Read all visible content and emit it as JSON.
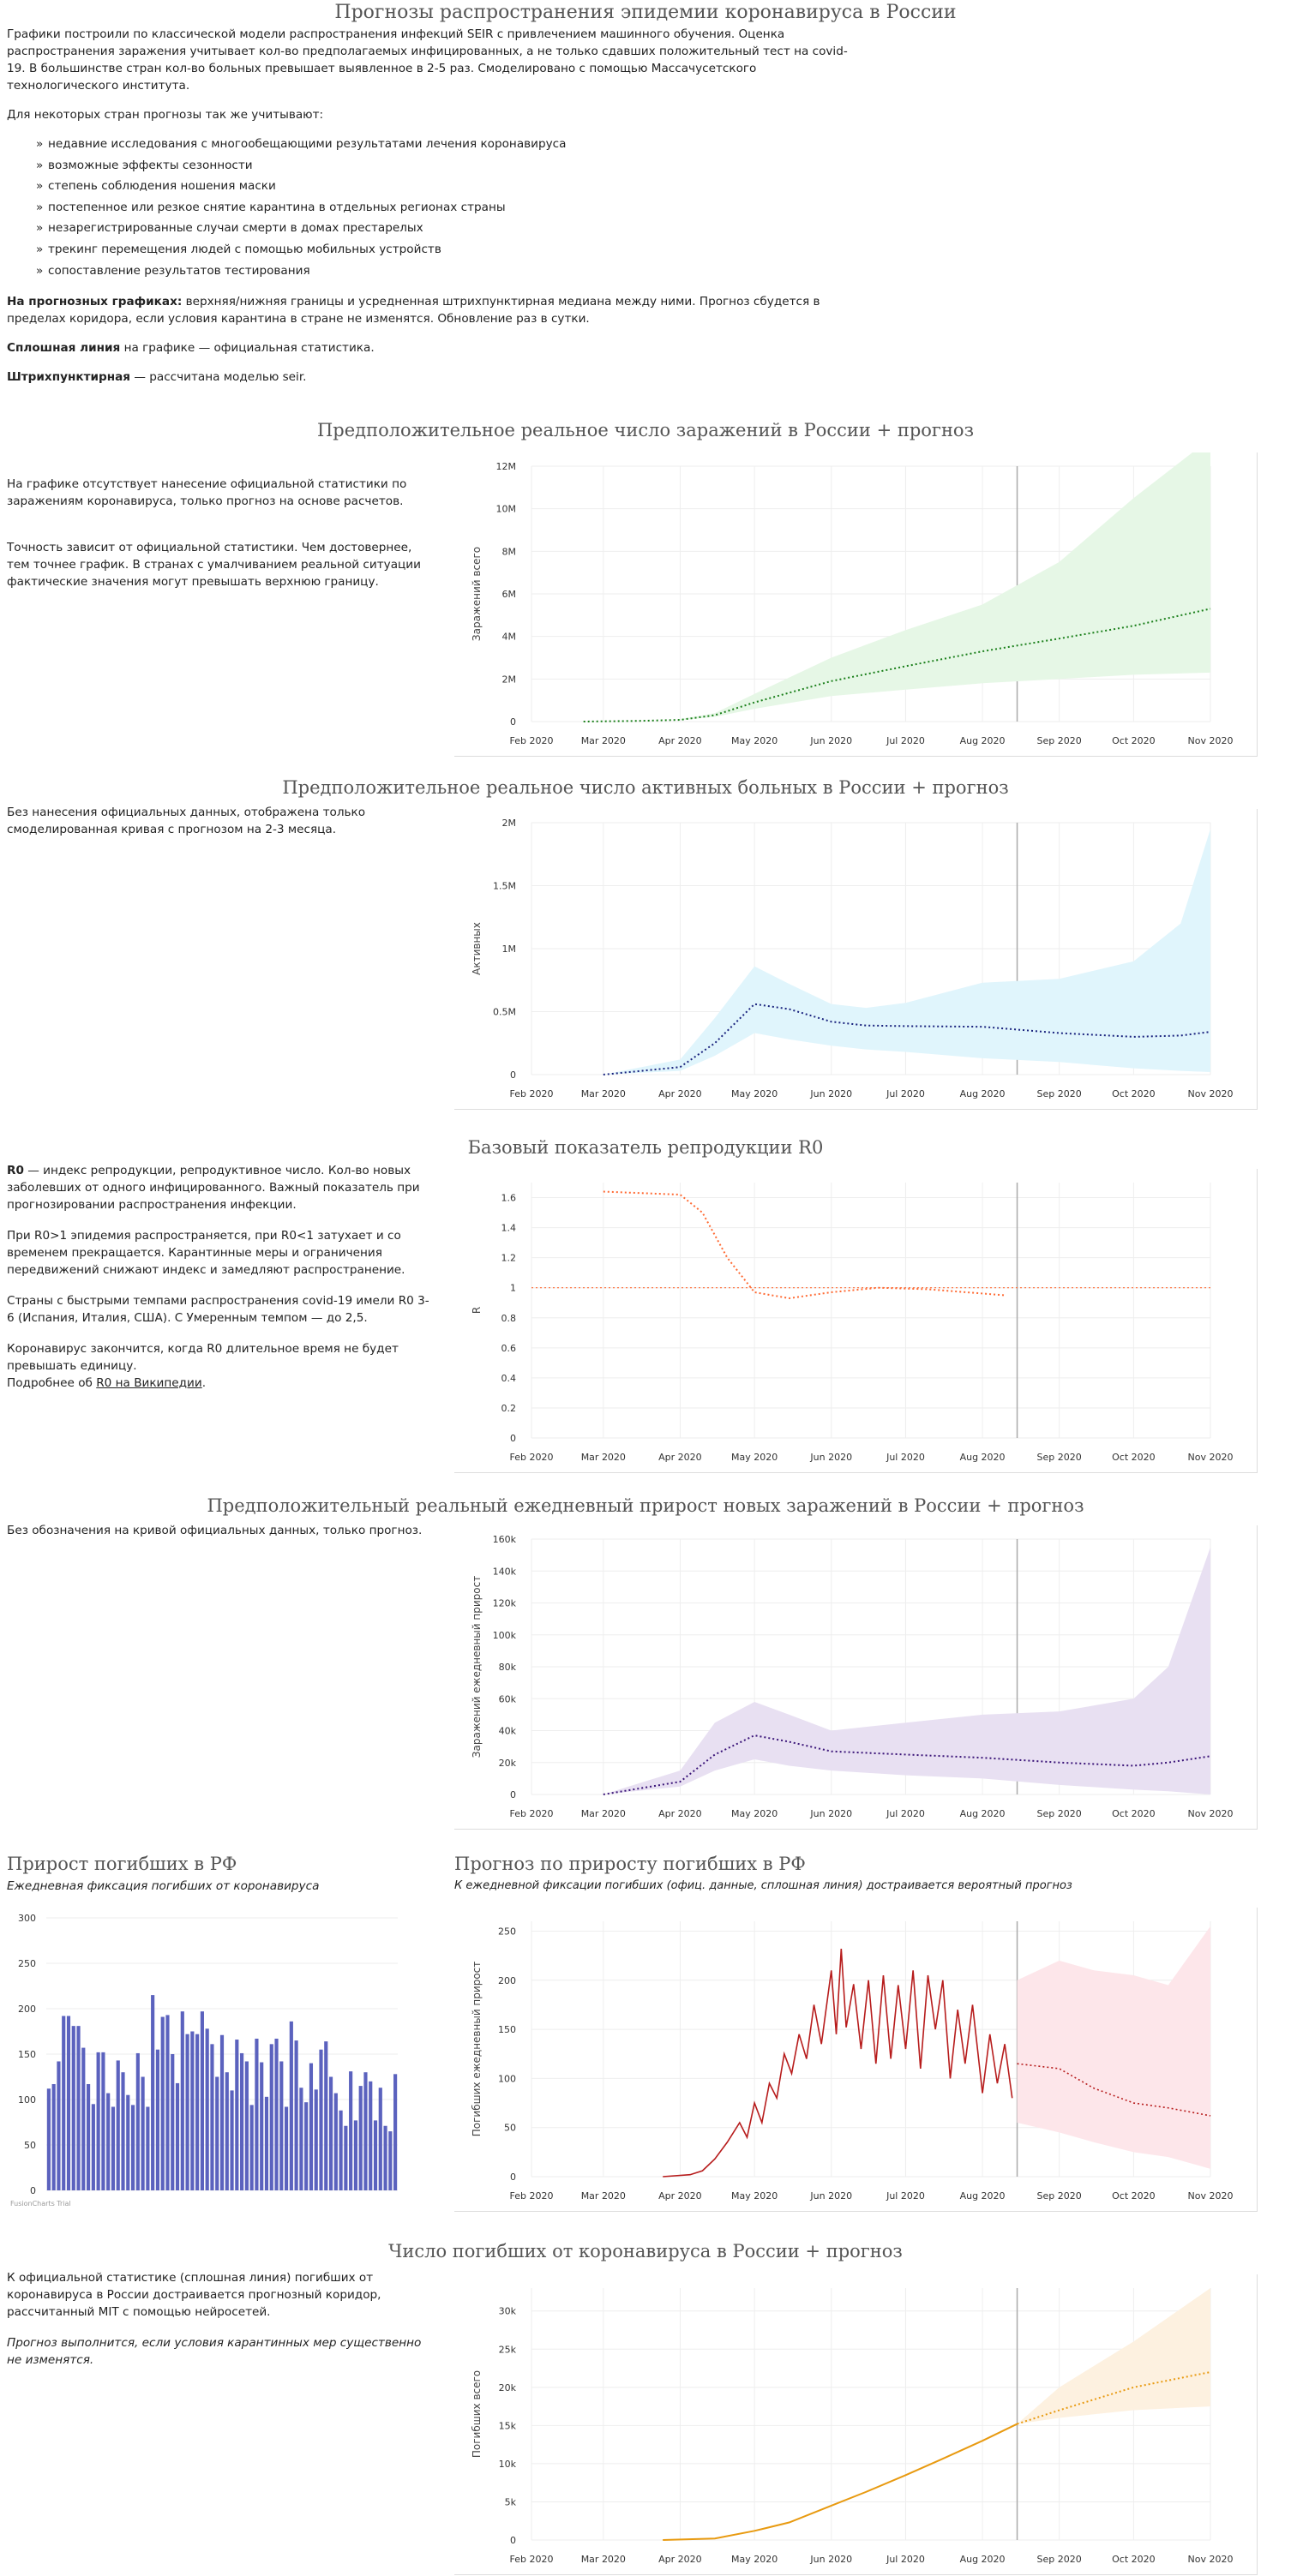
{
  "page": {
    "title": "Прогнозы распространения эпидемии коронавируса в России",
    "intro_p1": "Графики построили по классической модели распространения инфекций SEIR с привлечением машинного обучения. Оценка распространения заражения учитывает кол-во предполагаемых инфицированных, а не только сдавших положительный тест на covid-19. В большинстве стран кол-во больных превышает выявленное в 2-5 раз. Смоделировано с помощью Массачусетского технологического института.",
    "intro_p2": "Для некоторых стран прогнозы так же учитывают:",
    "bullets": [
      "недавние исследования с многообещающими результатами лечения коронавируса",
      "возможные эффекты сезонности",
      "степень соблюдения ношения маски",
      "постепенное или резкое снятие карантина в отдельных регионах страны",
      "незарегистрированные случаи смерти в домах престарелых",
      "трекинг перемещения людей с помощью мобильных устройств",
      "сопоставление результатов тестирования"
    ],
    "note1_bold": "На прогнозных графиках:",
    "note1_text": " верхняя/нижняя границы и усредненная штрихпунктирная медиана между ними. Прогноз сбудется в пределах коридора, если условия карантина в стране не изменятся. Обновление раз в сутки.",
    "note2_bold": "Сплошная линия",
    "note2_text": " на графике — официальная статистика.",
    "note3_bold": "Штрихпунктирная",
    "note3_text": " — рассчитана моделью seir."
  },
  "sections": {
    "s1": {
      "title": "Предположительное реальное число заражений в России + прогноз",
      "text1": "На графике отсутствует нанесение официальной статистики по заражениям коронавируса, только прогноз на основе расчетов.",
      "text2": "Точность зависит от официальной статистики. Чем достовернее, тем точнее график. В странах с умалчиванием реальной ситуации фактические значения могут превышать верхнюю границу."
    },
    "s2": {
      "title": "Предположительное реальное число активных больных в России + прогноз",
      "text1": "Без нанесения официальных данных, отображена только смоделированная кривая с прогнозом на 2-3 месяца."
    },
    "s3": {
      "title": "Базовый показатель репродукции R0",
      "p1_bold": "R0",
      "p1_text": " — индекс репродукции, репродуктивное число. Кол-во новых заболевших от одного инфицированного. Важный показатель при прогнозировании распространения инфекции.",
      "p2": "При R0>1 эпидемия распространяется, при R0<1 затухает и со временем прекращается. Карантинные меры и ограничения передвижений снижают индекс и замедляют распространение.",
      "p3": "Страны с быстрыми темпами распространения covid-19 имели R0 3-6 (Испания, Италия, США). С Умеренным темпом — до 2,5.",
      "p4": "Коронавирус закончится, когда R0 длительное время не будет превышать единицу.",
      "p5_prefix": "Подробнее об ",
      "p5_link": "R0 на Википедии",
      "p5_suffix": "."
    },
    "s4": {
      "title": "Предположительный реальный ежедневный прирост новых заражений в России + прогноз",
      "text1": "Без обозначения на кривой официальных данных, только прогноз."
    },
    "s5": {
      "title": "Прирост погибших в РФ",
      "subtitle": "Ежедневная фиксация погибших от коронавируса",
      "credit": "FusionCharts Trial"
    },
    "s6": {
      "title": "Прогноз по приросту погибших в РФ",
      "subtitle": "К ежедневной фиксации погибших (офиц. данные, сплошная линия) достраивается вероятный прогноз"
    },
    "s7": {
      "title": "Число погибших от коронавируса в России + прогноз",
      "text1": "К официальной статистике (сплошная линия) погибших от коронавируса в России достраивается прогнозный коридор, рассчитанный MIT с помощью нейросетей.",
      "text2": "Прогноз выполнится, если условия карантинных мер существенно не изменятся."
    }
  },
  "colors": {
    "infections": "#1a7f1a",
    "infections_band": "#e6f7e6",
    "active": "#1a237e",
    "active_band": "#e0f5fc",
    "r0": "#ff6a33",
    "daily": "#3a1478",
    "daily_band": "#e8e0f2",
    "bars": "#5b62be",
    "deaths_daily": "#b71c1c",
    "deaths_daily_band": "#fde6ea",
    "deaths_total": "#e89a10",
    "deaths_total_band": "#fdf1e0"
  },
  "chart_data": [
    {
      "id": "infections",
      "type": "area",
      "x_ticks": [
        "Feb 2020",
        "Mar 2020",
        "Apr 2020",
        "May 2020",
        "Jun 2020",
        "Jul 2020",
        "Aug 2020",
        "Sep 2020",
        "Oct 2020",
        "Nov 2020"
      ],
      "y_ticks": [
        "0",
        "2M",
        "4M",
        "6M",
        "8M",
        "10M",
        "12M"
      ],
      "ylabel": "Заражений всего",
      "ylim": [
        0,
        12000000
      ],
      "forecast_start": "2020-08-15",
      "points": [
        [
          "2020-02-22",
          0,
          0,
          0
        ],
        [
          "2020-03-15",
          30000,
          20000,
          40000
        ],
        [
          "2020-04-01",
          80000,
          60000,
          110000
        ],
        [
          "2020-04-15",
          300000,
          220000,
          400000
        ],
        [
          "2020-05-01",
          900000,
          600000,
          1300000
        ],
        [
          "2020-06-01",
          1900000,
          1200000,
          3000000
        ],
        [
          "2020-07-01",
          2600000,
          1500000,
          4300000
        ],
        [
          "2020-08-01",
          3300000,
          1800000,
          5500000
        ],
        [
          "2020-09-01",
          3900000,
          2000000,
          7500000
        ],
        [
          "2020-10-01",
          4500000,
          2200000,
          10500000
        ],
        [
          "2020-11-01",
          5300000,
          2300000,
          13300000
        ]
      ]
    },
    {
      "id": "active",
      "type": "area",
      "x_ticks": [
        "Feb 2020",
        "Mar 2020",
        "Apr 2020",
        "May 2020",
        "Jun 2020",
        "Jul 2020",
        "Aug 2020",
        "Sep 2020",
        "Oct 2020",
        "Nov 2020"
      ],
      "y_ticks": [
        "0",
        "0.5M",
        "1M",
        "1.5M",
        "2M"
      ],
      "ylabel": "Активных",
      "ylim": [
        0,
        2000000
      ],
      "forecast_start": "2020-08-15",
      "points": [
        [
          "2020-03-01",
          0,
          0,
          0
        ],
        [
          "2020-04-01",
          60000,
          30000,
          120000
        ],
        [
          "2020-04-15",
          250000,
          150000,
          450000
        ],
        [
          "2020-05-01",
          560000,
          330000,
          860000
        ],
        [
          "2020-05-15",
          520000,
          280000,
          720000
        ],
        [
          "2020-06-01",
          420000,
          230000,
          560000
        ],
        [
          "2020-06-15",
          390000,
          200000,
          530000
        ],
        [
          "2020-07-01",
          385000,
          180000,
          570000
        ],
        [
          "2020-08-01",
          380000,
          130000,
          730000
        ],
        [
          "2020-09-01",
          330000,
          100000,
          760000
        ],
        [
          "2020-10-01",
          300000,
          50000,
          900000
        ],
        [
          "2020-10-20",
          310000,
          30000,
          1200000
        ],
        [
          "2020-11-01",
          340000,
          20000,
          1950000
        ]
      ]
    },
    {
      "id": "r0",
      "type": "line",
      "x_ticks": [
        "Feb 2020",
        "Mar 2020",
        "Apr 2020",
        "May 2020",
        "Jun 2020",
        "Jul 2020",
        "Aug 2020",
        "Sep 2020",
        "Oct 2020",
        "Nov 2020"
      ],
      "y_ticks": [
        "0",
        "0.2",
        "0.4",
        "0.6",
        "0.8",
        "1",
        "1.2",
        "1.4",
        "1.6"
      ],
      "ylabel": "R",
      "ylim": [
        0,
        1.7
      ],
      "reference": 1,
      "forecast_start": "2020-08-15",
      "points": [
        [
          "2020-03-01",
          1.64
        ],
        [
          "2020-04-01",
          1.62
        ],
        [
          "2020-04-10",
          1.5
        ],
        [
          "2020-04-20",
          1.2
        ],
        [
          "2020-05-01",
          0.97
        ],
        [
          "2020-05-15",
          0.93
        ],
        [
          "2020-06-01",
          0.97
        ],
        [
          "2020-06-20",
          1.0
        ],
        [
          "2020-07-10",
          0.99
        ],
        [
          "2020-08-10",
          0.95
        ]
      ]
    },
    {
      "id": "daily",
      "type": "area",
      "x_ticks": [
        "Feb 2020",
        "Mar 2020",
        "Apr 2020",
        "May 2020",
        "Jun 2020",
        "Jul 2020",
        "Aug 2020",
        "Sep 2020",
        "Oct 2020",
        "Nov 2020"
      ],
      "y_ticks": [
        "0",
        "20k",
        "40k",
        "60k",
        "80k",
        "100k",
        "120k",
        "140k",
        "160k"
      ],
      "ylabel": "Заражений ежедневный прирост",
      "ylim": [
        0,
        160000
      ],
      "forecast_start": "2020-08-15",
      "points": [
        [
          "2020-03-01",
          0,
          0,
          0
        ],
        [
          "2020-04-01",
          8000,
          5000,
          15000
        ],
        [
          "2020-04-15",
          25000,
          15000,
          45000
        ],
        [
          "2020-05-01",
          37000,
          22000,
          58000
        ],
        [
          "2020-05-15",
          33000,
          18000,
          50000
        ],
        [
          "2020-06-01",
          27000,
          15000,
          40000
        ],
        [
          "2020-07-01",
          25000,
          12000,
          45000
        ],
        [
          "2020-08-01",
          23000,
          10000,
          50000
        ],
        [
          "2020-09-01",
          20000,
          6000,
          52000
        ],
        [
          "2020-10-01",
          18000,
          3000,
          60000
        ],
        [
          "2020-10-15",
          20000,
          2000,
          80000
        ],
        [
          "2020-11-01",
          24000,
          0,
          155000
        ]
      ]
    },
    {
      "id": "deaths-bars",
      "type": "bar",
      "y_ticks": [
        "0",
        "50",
        "100",
        "150",
        "200",
        "250",
        "300"
      ],
      "ylim": [
        0,
        300
      ],
      "values": [
        112,
        117,
        142,
        192,
        192,
        181,
        181,
        157,
        117,
        95,
        152,
        152,
        107,
        92,
        143,
        130,
        105,
        94,
        151,
        125,
        92,
        215,
        155,
        191,
        193,
        150,
        118,
        197,
        172,
        175,
        172,
        197,
        178,
        161,
        125,
        171,
        130,
        110,
        166,
        151,
        142,
        94,
        167,
        141,
        103,
        161,
        167,
        142,
        92,
        186,
        165,
        113,
        97,
        140,
        111,
        155,
        164,
        125,
        107,
        88,
        71,
        131,
        77,
        115,
        130,
        120,
        77,
        113,
        71,
        65,
        128
      ]
    },
    {
      "id": "deaths-daily",
      "type": "line",
      "x_ticks": [
        "Feb 2020",
        "Mar 2020",
        "Apr 2020",
        "May 2020",
        "Jun 2020",
        "Jul 2020",
        "Aug 2020",
        "Sep 2020",
        "Oct 2020",
        "Nov 2020"
      ],
      "y_ticks": [
        "0",
        "50",
        "100",
        "150",
        "200",
        "250"
      ],
      "ylabel": "Погибших ежедневный прирост",
      "ylim": [
        0,
        260
      ],
      "forecast_start": "2020-08-15",
      "official": [
        [
          "2020-03-25",
          0
        ],
        [
          "2020-04-05",
          2
        ],
        [
          "2020-04-10",
          6
        ],
        [
          "2020-04-15",
          18
        ],
        [
          "2020-04-20",
          35
        ],
        [
          "2020-04-25",
          55
        ],
        [
          "2020-04-28",
          40
        ],
        [
          "2020-05-01",
          75
        ],
        [
          "2020-05-04",
          55
        ],
        [
          "2020-05-07",
          95
        ],
        [
          "2020-05-10",
          80
        ],
        [
          "2020-05-13",
          125
        ],
        [
          "2020-05-16",
          105
        ],
        [
          "2020-05-19",
          145
        ],
        [
          "2020-05-22",
          120
        ],
        [
          "2020-05-25",
          175
        ],
        [
          "2020-05-28",
          135
        ],
        [
          "2020-06-01",
          210
        ],
        [
          "2020-06-03",
          145
        ],
        [
          "2020-06-05",
          232
        ],
        [
          "2020-06-07",
          152
        ],
        [
          "2020-06-10",
          196
        ],
        [
          "2020-06-13",
          130
        ],
        [
          "2020-06-16",
          200
        ],
        [
          "2020-06-19",
          115
        ],
        [
          "2020-06-22",
          205
        ],
        [
          "2020-06-25",
          120
        ],
        [
          "2020-06-28",
          195
        ],
        [
          "2020-07-01",
          130
        ],
        [
          "2020-07-04",
          210
        ],
        [
          "2020-07-07",
          110
        ],
        [
          "2020-07-10",
          205
        ],
        [
          "2020-07-13",
          150
        ],
        [
          "2020-07-16",
          200
        ],
        [
          "2020-07-19",
          100
        ],
        [
          "2020-07-22",
          170
        ],
        [
          "2020-07-25",
          115
        ],
        [
          "2020-07-28",
          175
        ],
        [
          "2020-08-01",
          85
        ],
        [
          "2020-08-04",
          145
        ],
        [
          "2020-08-07",
          95
        ],
        [
          "2020-08-10",
          135
        ],
        [
          "2020-08-13",
          80
        ]
      ],
      "forecast": [
        [
          "2020-08-15",
          115,
          55,
          200
        ],
        [
          "2020-09-01",
          110,
          45,
          220
        ],
        [
          "2020-09-15",
          90,
          35,
          210
        ],
        [
          "2020-10-01",
          75,
          25,
          205
        ],
        [
          "2020-10-15",
          70,
          20,
          195
        ],
        [
          "2020-11-01",
          62,
          8,
          255
        ]
      ]
    },
    {
      "id": "deaths-total",
      "type": "line",
      "x_ticks": [
        "Feb 2020",
        "Mar 2020",
        "Apr 2020",
        "May 2020",
        "Jun 2020",
        "Jul 2020",
        "Aug 2020",
        "Sep 2020",
        "Oct 2020",
        "Nov 2020"
      ],
      "y_ticks": [
        "0",
        "5k",
        "10k",
        "15k",
        "20k",
        "25k",
        "30k"
      ],
      "ylabel": "Погибших всего",
      "ylim": [
        0,
        33000
      ],
      "forecast_start": "2020-08-15",
      "official": [
        [
          "2020-03-25",
          0
        ],
        [
          "2020-04-15",
          200
        ],
        [
          "2020-05-01",
          1200
        ],
        [
          "2020-05-15",
          2300
        ],
        [
          "2020-06-01",
          4500
        ],
        [
          "2020-06-15",
          6300
        ],
        [
          "2020-07-01",
          8500
        ],
        [
          "2020-07-15",
          10500
        ],
        [
          "2020-08-01",
          13000
        ],
        [
          "2020-08-15",
          15200
        ]
      ],
      "forecast": [
        [
          "2020-08-15",
          15200,
          15200,
          15200
        ],
        [
          "2020-09-01",
          17000,
          16000,
          20000
        ],
        [
          "2020-10-01",
          20000,
          17000,
          26000
        ],
        [
          "2020-11-01",
          22000,
          17500,
          33000
        ]
      ]
    }
  ]
}
